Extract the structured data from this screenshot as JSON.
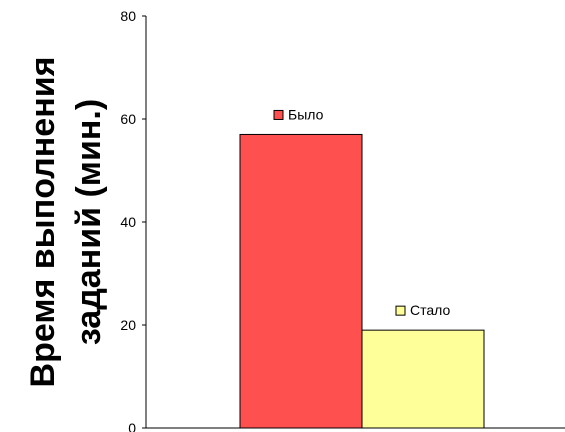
{
  "chart_data": {
    "type": "bar",
    "categories": [
      "Было",
      "Стало"
    ],
    "values": [
      57,
      19
    ],
    "colors": [
      "#ff5050",
      "#ffff99"
    ],
    "ylabel_lines": [
      "Время выполнения",
      "заданий (мин.)"
    ],
    "ylim": [
      0,
      80
    ],
    "yticks": [
      "0",
      "20",
      "40",
      "60",
      "80"
    ],
    "grid": false,
    "legend": "per-bar labels above each bar"
  }
}
